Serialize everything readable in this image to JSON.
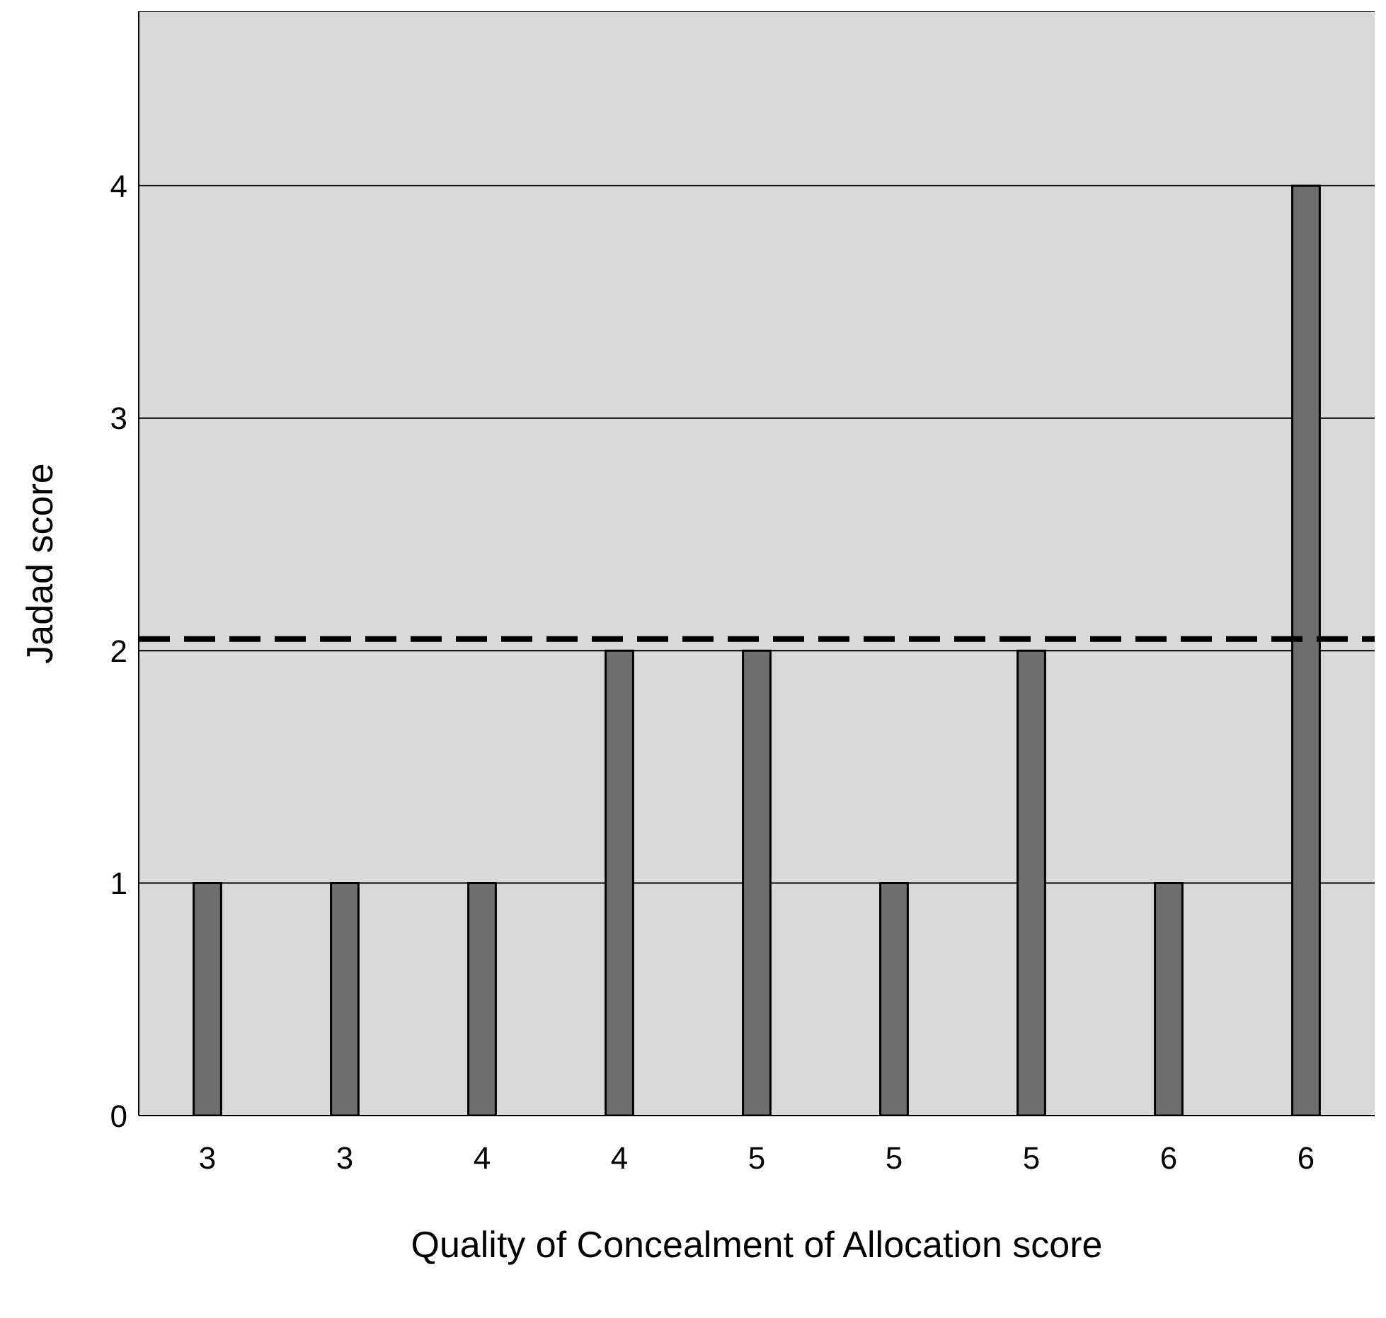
{
  "chart_data": {
    "type": "bar",
    "xlabel": "Quality of Concealment of Allocation  score",
    "ylabel": "Jadad score",
    "categories": [
      "3",
      "3",
      "4",
      "4",
      "5",
      "5",
      "5",
      "6",
      "6"
    ],
    "values": [
      1,
      1,
      1,
      2,
      2,
      1,
      2,
      1,
      4
    ],
    "color": "#6e6e6e",
    "ylim": [
      0,
      4.75
    ],
    "yticks": [
      0,
      1,
      2,
      3,
      4
    ],
    "grid": "y",
    "ref_lines": [
      {
        "axis": "y",
        "value": 2.05,
        "color": "#000000",
        "line_style": "dashed"
      }
    ]
  }
}
